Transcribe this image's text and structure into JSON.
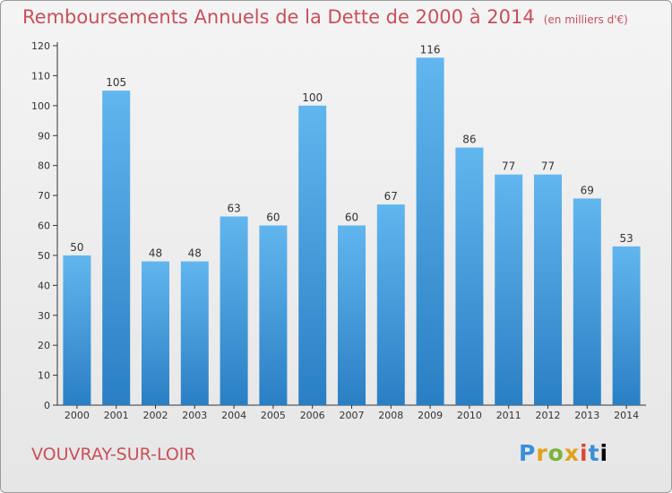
{
  "chart_data": {
    "type": "bar",
    "title": "Remboursements Annuels de la Dette de 2000 à 2014",
    "unit_note": "(en milliers d'€)",
    "categories": [
      "2000",
      "2001",
      "2002",
      "2003",
      "2004",
      "2005",
      "2006",
      "2007",
      "2008",
      "2009",
      "2010",
      "2011",
      "2012",
      "2013",
      "2014"
    ],
    "values": [
      50,
      105,
      48,
      48,
      63,
      60,
      100,
      60,
      67,
      116,
      86,
      77,
      77,
      69,
      53
    ],
    "ylim": [
      0,
      120
    ],
    "yticks": [
      0,
      10,
      20,
      30,
      40,
      50,
      60,
      70,
      80,
      90,
      100,
      110,
      120
    ],
    "xlabel": "",
    "ylabel": "",
    "grid": false,
    "bar_color_top": "#62b6ee",
    "bar_color_bottom": "#2a7fc4"
  },
  "footer": {
    "town": "VOUVRAY-SUR-LOIR",
    "logo_text": "Proxiti"
  },
  "colors": {
    "title": "#c8505a",
    "axis": "#333333"
  }
}
